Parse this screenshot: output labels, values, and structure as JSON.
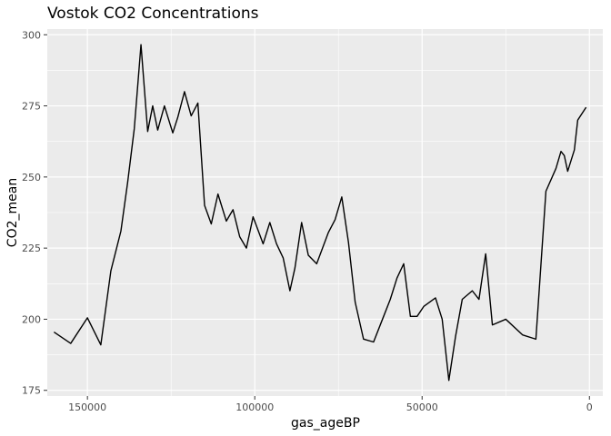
{
  "chart_data": {
    "type": "line",
    "title": "Vostok CO2 Concentrations",
    "xlabel": "gas_ageBP",
    "ylabel": "CO2_mean",
    "x_reversed": true,
    "xlim": [
      162000,
      -4000
    ],
    "ylim": [
      173,
      302
    ],
    "x_ticks": [
      150000,
      100000,
      50000,
      0
    ],
    "x_tick_labels": [
      "150000",
      "100000",
      "50000",
      "0"
    ],
    "y_ticks": [
      175,
      200,
      225,
      250,
      275,
      300
    ],
    "y_tick_labels": [
      "175",
      "200",
      "225",
      "250",
      "275",
      "300"
    ],
    "grid": true,
    "panel_background": "#ebebeb",
    "line_color": "#000000",
    "series": [
      {
        "x": [
          160000,
          155000,
          150000,
          146000,
          143000,
          140000,
          138000,
          136000,
          134000,
          132000,
          130500,
          129000,
          127000,
          124500,
          123000,
          121000,
          119000,
          117000,
          115000,
          113000,
          111000,
          108500,
          106500,
          104500,
          102500,
          100500,
          97500,
          95500,
          93500,
          91500,
          89500,
          88000,
          86000,
          84000,
          81500,
          78000,
          76000,
          74000,
          72000,
          70000,
          67500,
          64500,
          61500,
          59500,
          57500,
          55500,
          53500,
          51500,
          49500,
          46000,
          44000,
          42000,
          40000,
          38000,
          35000,
          33000,
          31000,
          29000,
          25000,
          20000,
          16000,
          13000,
          10000,
          8500,
          7500,
          6500,
          4500,
          3500,
          1000
        ],
        "y": [
          195.5,
          191.5,
          200.5,
          191,
          217,
          231,
          248,
          267,
          296.5,
          266,
          275,
          266.5,
          275,
          265.5,
          271,
          280,
          271.5,
          276,
          240,
          233.5,
          244,
          234.5,
          238.5,
          229,
          225,
          236,
          226.5,
          234,
          226.5,
          221.5,
          210,
          218,
          234,
          222.5,
          219.5,
          230.5,
          235,
          243,
          227,
          206,
          193,
          192,
          201,
          207,
          214.5,
          219.5,
          201,
          201,
          204.5,
          207.5,
          200,
          178.5,
          194,
          207,
          210,
          207,
          223,
          198,
          200,
          194.5,
          193,
          245,
          253,
          259,
          257.5,
          252,
          259.5,
          270,
          274.5
        ]
      }
    ]
  }
}
